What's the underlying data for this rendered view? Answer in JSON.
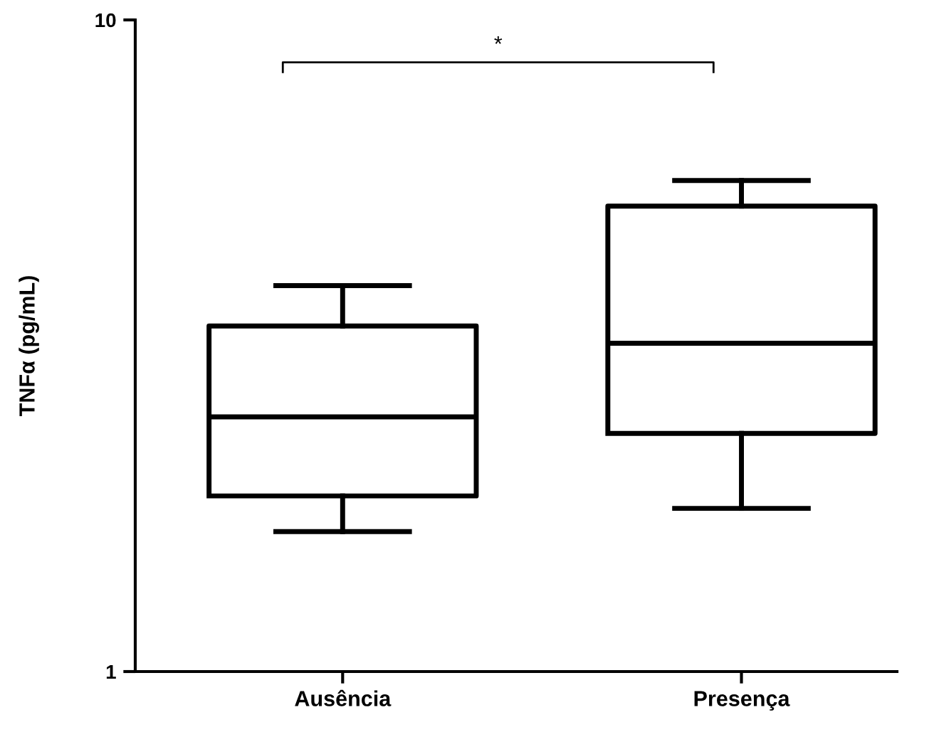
{
  "chart_data": {
    "type": "box",
    "ylabel": "TNFα (pg/mL)",
    "categories": [
      "Ausência",
      "Presença"
    ],
    "boxes": [
      {
        "low": 1.64,
        "q1": 1.86,
        "median": 2.46,
        "q3": 3.39,
        "high": 3.91
      },
      {
        "low": 1.78,
        "q1": 2.32,
        "median": 3.19,
        "q3": 5.18,
        "high": 5.67
      }
    ],
    "log": true,
    "ylim": [
      1,
      10
    ],
    "yticks": [
      1,
      10
    ],
    "grid": false,
    "annotations": [
      "*"
    ]
  }
}
